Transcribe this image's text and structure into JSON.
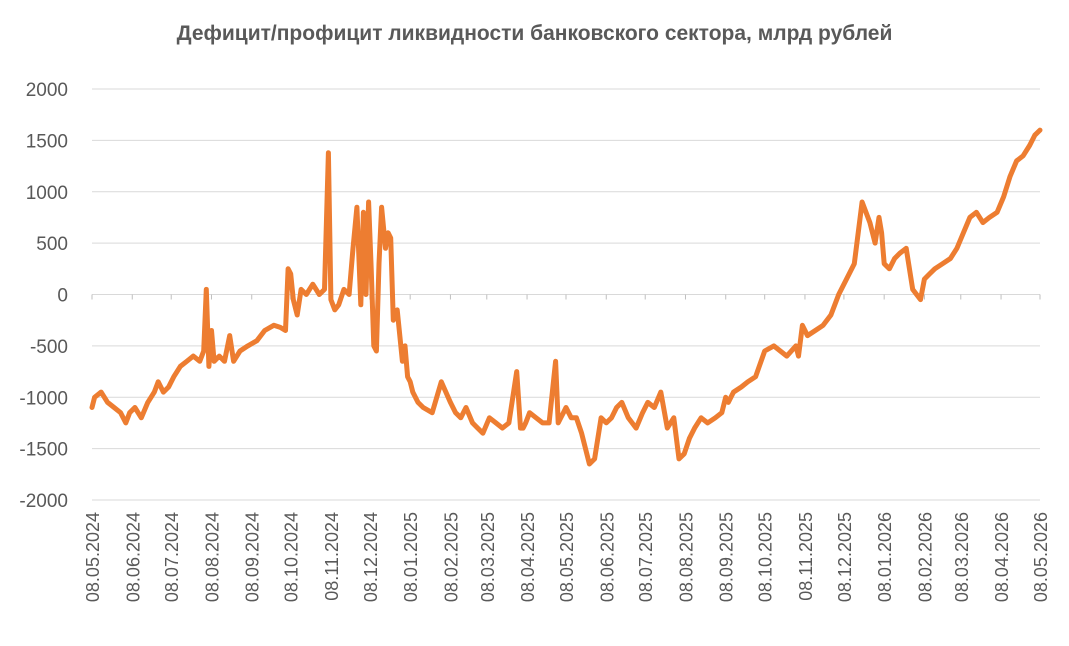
{
  "chart_data": {
    "type": "line",
    "title": "Дефицит/профицит ликвидности банковского сектора, млрд рублей",
    "xlabel": "",
    "ylabel": "",
    "ylim": [
      -2000,
      2000
    ],
    "yticks": [
      2000,
      1500,
      1000,
      500,
      0,
      -500,
      -1000,
      -1500,
      -2000
    ],
    "ytick_labels": [
      "2000",
      "1500",
      "1000",
      "500",
      "0",
      "-500",
      "-1000",
      "-1500",
      "-2000"
    ],
    "xlim": [
      "2024-05-08",
      "2026-05-08"
    ],
    "xtick_labels": [
      "08.05.2024",
      "08.06.2024",
      "08.07.2024",
      "08.08.2024",
      "08.09.2024",
      "08.10.2024",
      "08.11.2024",
      "08.12.2024",
      "08.01.2025",
      "08.02.2025",
      "08.03.2025",
      "08.04.2025",
      "08.05.2025",
      "08.06.2025",
      "08.07.2025",
      "08.08.2025",
      "08.09.2025",
      "08.10.2025",
      "08.11.2025",
      "08.12.2025",
      "08.01.2026",
      "08.02.2026",
      "08.03.2026",
      "08.04.2026",
      "08.05.2026"
    ],
    "grid": "horizontal",
    "legend": "none",
    "line_color": "#ED7D31",
    "series": [
      {
        "x": [
          "2024-05-08",
          "2024-05-10",
          "2024-05-15",
          "2024-05-20",
          "2024-05-25",
          "2024-05-30",
          "2024-06-03",
          "2024-06-06",
          "2024-06-10",
          "2024-06-15",
          "2024-06-20",
          "2024-06-25",
          "2024-06-28",
          "2024-07-02",
          "2024-07-06",
          "2024-07-10",
          "2024-07-15",
          "2024-07-20",
          "2024-07-25",
          "2024-07-30",
          "2024-08-02",
          "2024-08-04",
          "2024-08-06",
          "2024-08-08",
          "2024-08-10",
          "2024-08-14",
          "2024-08-18",
          "2024-08-22",
          "2024-08-25",
          "2024-08-30",
          "2024-09-05",
          "2024-09-12",
          "2024-09-18",
          "2024-09-25",
          "2024-09-30",
          "2024-10-04",
          "2024-10-06",
          "2024-10-08",
          "2024-10-10",
          "2024-10-13",
          "2024-10-16",
          "2024-10-20",
          "2024-10-25",
          "2024-10-30",
          "2024-11-03",
          "2024-11-06",
          "2024-11-08",
          "2024-11-11",
          "2024-11-14",
          "2024-11-18",
          "2024-11-22",
          "2024-11-25",
          "2024-11-28",
          "2024-12-01",
          "2024-12-03",
          "2024-12-05",
          "2024-12-07",
          "2024-12-09",
          "2024-12-11",
          "2024-12-13",
          "2024-12-15",
          "2024-12-17",
          "2024-12-20",
          "2024-12-22",
          "2024-12-24",
          "2024-12-26",
          "2024-12-29",
          "2025-01-02",
          "2025-01-04",
          "2025-01-06",
          "2025-01-08",
          "2025-01-10",
          "2025-01-14",
          "2025-01-18",
          "2025-01-25",
          "2025-02-01",
          "2025-02-08",
          "2025-02-12",
          "2025-02-16",
          "2025-02-20",
          "2025-02-25",
          "2025-03-01",
          "2025-03-05",
          "2025-03-10",
          "2025-03-15",
          "2025-03-20",
          "2025-03-25",
          "2025-03-31",
          "2025-04-03",
          "2025-04-05",
          "2025-04-07",
          "2025-04-10",
          "2025-04-15",
          "2025-04-20",
          "2025-04-25",
          "2025-04-30",
          "2025-05-02",
          "2025-05-04",
          "2025-05-06",
          "2025-05-08",
          "2025-05-12",
          "2025-05-16",
          "2025-05-20",
          "2025-05-26",
          "2025-05-30",
          "2025-06-04",
          "2025-06-08",
          "2025-06-12",
          "2025-06-16",
          "2025-06-20",
          "2025-06-25",
          "2025-07-01",
          "2025-07-06",
          "2025-07-10",
          "2025-07-15",
          "2025-07-20",
          "2025-07-25",
          "2025-07-30",
          "2025-08-03",
          "2025-08-07",
          "2025-08-11",
          "2025-08-15",
          "2025-08-20",
          "2025-08-25",
          "2025-08-31",
          "2025-09-05",
          "2025-09-08",
          "2025-09-10",
          "2025-09-14",
          "2025-09-20",
          "2025-09-25",
          "2025-10-01",
          "2025-10-08",
          "2025-10-15",
          "2025-10-20",
          "2025-10-25",
          "2025-11-01",
          "2025-11-03",
          "2025-11-06",
          "2025-11-10",
          "2025-11-16",
          "2025-11-22",
          "2025-11-28",
          "2025-12-04",
          "2025-12-10",
          "2025-12-16",
          "2025-12-22",
          "2025-12-28",
          "2026-01-01",
          "2026-01-04",
          "2026-01-06",
          "2026-01-08",
          "2026-01-12",
          "2026-01-16",
          "2026-01-20",
          "2026-01-25",
          "2026-01-30",
          "2026-02-02",
          "2026-02-05",
          "2026-02-08",
          "2026-02-12",
          "2026-02-16",
          "2026-02-22",
          "2026-02-28",
          "2026-03-05",
          "2026-03-10",
          "2026-03-15",
          "2026-03-20",
          "2026-03-25",
          "2026-03-30",
          "2026-04-05",
          "2026-04-10",
          "2026-04-15",
          "2026-04-20",
          "2026-04-25",
          "2026-04-30",
          "2026-05-04",
          "2026-05-08"
        ],
        "values": [
          -1100,
          -1000,
          -950,
          -1050,
          -1100,
          -1150,
          -1250,
          -1150,
          -1100,
          -1200,
          -1050,
          -950,
          -850,
          -950,
          -900,
          -800,
          -700,
          -650,
          -600,
          -650,
          -550,
          50,
          -700,
          -350,
          -650,
          -600,
          -650,
          -400,
          -650,
          -550,
          -500,
          -450,
          -350,
          -300,
          -320,
          -350,
          250,
          200,
          -50,
          -200,
          50,
          0,
          100,
          0,
          50,
          1380,
          -50,
          -150,
          -100,
          50,
          0,
          450,
          850,
          -100,
          800,
          0,
          900,
          250,
          -500,
          -550,
          300,
          850,
          450,
          600,
          550,
          -250,
          -150,
          -650,
          -500,
          -800,
          -850,
          -950,
          -1050,
          -1100,
          -1150,
          -850,
          -1050,
          -1150,
          -1200,
          -1100,
          -1250,
          -1300,
          -1350,
          -1200,
          -1250,
          -1300,
          -1250,
          -750,
          -1300,
          -1300,
          -1250,
          -1150,
          -1200,
          -1250,
          -1250,
          -650,
          -1250,
          -1200,
          -1150,
          -1100,
          -1200,
          -1200,
          -1350,
          -1650,
          -1600,
          -1200,
          -1250,
          -1200,
          -1100,
          -1050,
          -1200,
          -1300,
          -1150,
          -1050,
          -1100,
          -950,
          -1300,
          -1200,
          -1600,
          -1550,
          -1400,
          -1300,
          -1200,
          -1250,
          -1200,
          -1150,
          -1000,
          -1050,
          -950,
          -900,
          -850,
          -800,
          -550,
          -500,
          -550,
          -600,
          -500,
          -600,
          -300,
          -400,
          -350,
          -300,
          -200,
          0,
          150,
          300,
          900,
          700,
          500,
          750,
          600,
          300,
          250,
          350,
          400,
          450,
          50,
          0,
          -50,
          150,
          200,
          250,
          300,
          350,
          450,
          600,
          750,
          800,
          700,
          750,
          800,
          950,
          1150,
          1300,
          1350,
          1450,
          1550,
          1600
        ]
      }
    ]
  }
}
